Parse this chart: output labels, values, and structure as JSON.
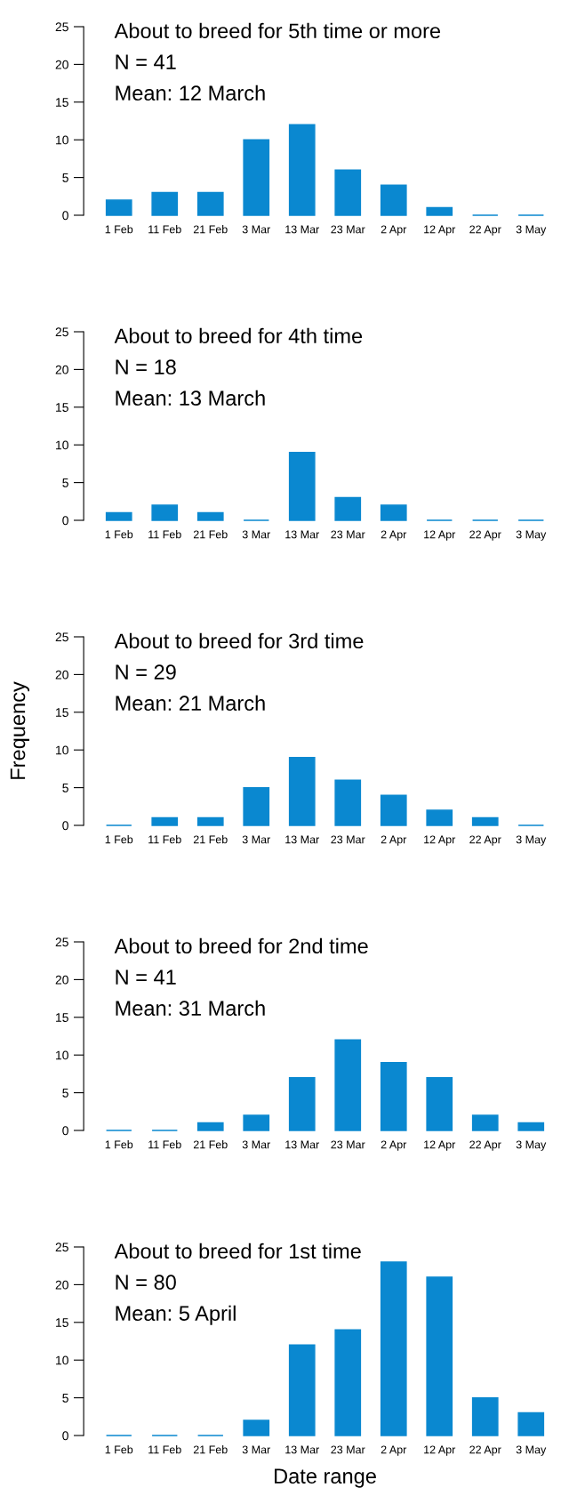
{
  "chart_data": [
    {
      "type": "bar",
      "title": "About to breed for 5th time or more",
      "annotations": [
        "N = 41",
        "Mean: 12 March"
      ],
      "categories": [
        "1 Feb",
        "11 Feb",
        "21 Feb",
        "3 Mar",
        "13 Mar",
        "23 Mar",
        "2 Apr",
        "12 Apr",
        "22 Apr",
        "3 May"
      ],
      "values": [
        2,
        3,
        3,
        10,
        12,
        6,
        4,
        1,
        0,
        0
      ],
      "color": "#0a88d0",
      "ylim": [
        0,
        25
      ],
      "yticks": [
        0,
        5,
        10,
        15,
        20,
        25
      ],
      "grid": false,
      "legend": false
    },
    {
      "type": "bar",
      "title": "About to breed for 4th time",
      "annotations": [
        "N = 18",
        "Mean: 13 March"
      ],
      "categories": [
        "1 Feb",
        "11 Feb",
        "21 Feb",
        "3 Mar",
        "13 Mar",
        "23 Mar",
        "2 Apr",
        "12 Apr",
        "22 Apr",
        "3 May"
      ],
      "values": [
        1,
        2,
        1,
        0,
        9,
        3,
        2,
        0,
        0,
        0
      ],
      "color": "#0a88d0",
      "ylim": [
        0,
        25
      ],
      "yticks": [
        0,
        5,
        10,
        15,
        20,
        25
      ],
      "grid": false,
      "legend": false
    },
    {
      "type": "bar",
      "title": "About to breed for 3rd time",
      "annotations": [
        "N = 29",
        "Mean: 21 March"
      ],
      "ylabel": "Frequency",
      "categories": [
        "1 Feb",
        "11 Feb",
        "21 Feb",
        "3 Mar",
        "13 Mar",
        "23 Mar",
        "2 Apr",
        "12 Apr",
        "22 Apr",
        "3 May"
      ],
      "values": [
        0,
        1,
        1,
        5,
        9,
        6,
        4,
        2,
        1,
        0
      ],
      "color": "#0a88d0",
      "ylim": [
        0,
        25
      ],
      "yticks": [
        0,
        5,
        10,
        15,
        20,
        25
      ],
      "grid": false,
      "legend": false
    },
    {
      "type": "bar",
      "title": "About to breed for 2nd time",
      "annotations": [
        "N = 41",
        "Mean: 31 March"
      ],
      "categories": [
        "1 Feb",
        "11 Feb",
        "21 Feb",
        "3 Mar",
        "13 Mar",
        "23 Mar",
        "2 Apr",
        "12 Apr",
        "22 Apr",
        "3 May"
      ],
      "values": [
        0,
        0,
        1,
        2,
        7,
        12,
        9,
        7,
        2,
        1
      ],
      "color": "#0a88d0",
      "ylim": [
        0,
        25
      ],
      "yticks": [
        0,
        5,
        10,
        15,
        20,
        25
      ],
      "grid": false,
      "legend": false
    },
    {
      "type": "bar",
      "title": "About to breed for 1st time",
      "annotations": [
        "N = 80",
        "Mean: 5 April"
      ],
      "xlabel": "Date range",
      "categories": [
        "1 Feb",
        "11 Feb",
        "21 Feb",
        "3 Mar",
        "13 Mar",
        "23 Mar",
        "2 Apr",
        "12 Apr",
        "22 Apr",
        "3 May"
      ],
      "values": [
        0,
        0,
        0,
        2,
        12,
        14,
        23,
        21,
        5,
        3
      ],
      "color": "#0a88d0",
      "ylim": [
        0,
        25
      ],
      "yticks": [
        0,
        5,
        10,
        15,
        20,
        25
      ],
      "grid": false,
      "legend": false
    }
  ]
}
